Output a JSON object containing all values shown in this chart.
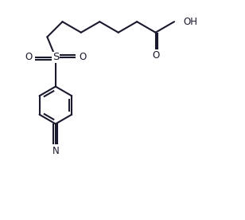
{
  "line_color": "#1a1a2e",
  "bg_color": "#ffffff",
  "line_width": 1.5,
  "font_size": 8.5,
  "fig_width": 3.08,
  "fig_height": 2.76,
  "xlim": [
    0,
    9
  ],
  "ylim": [
    -5.5,
    3.5
  ]
}
